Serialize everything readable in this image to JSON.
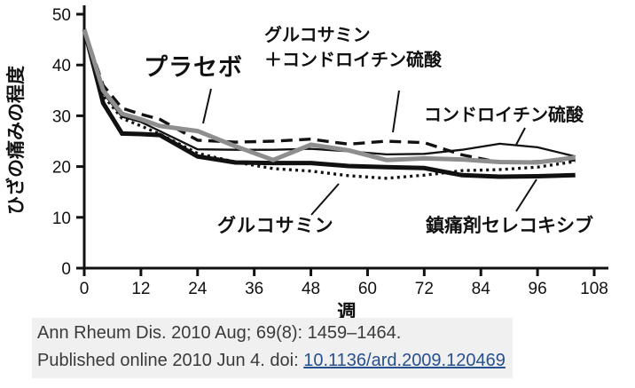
{
  "figure": {
    "citation_line1": "Ann Rheum Dis. 2010 Aug; 69(8): 1459–1464.",
    "citation_line2_prefix": "Published online 2010 Jun 4. doi: ",
    "citation_doi_link": "10.1136/ard.2009.120469"
  },
  "chart_data": {
    "type": "line",
    "title": "",
    "xlabel": "週",
    "ylabel": "ひざの痛みの程度",
    "xlim": [
      0,
      108
    ],
    "ylim": [
      0,
      50
    ],
    "x_ticks": [
      0,
      12,
      24,
      36,
      48,
      60,
      72,
      84,
      96,
      108
    ],
    "y_ticks": [
      0,
      10,
      20,
      30,
      40,
      50
    ],
    "grid": false,
    "legend": "inline-annotations",
    "x_weeks": [
      0,
      4,
      8,
      12,
      16,
      24,
      32,
      40,
      48,
      56,
      64,
      72,
      80,
      88,
      96,
      104
    ],
    "series": [
      {
        "name": "プラセボ",
        "annotation": "プラセボ",
        "style": "thick-gray",
        "color": "#8e8e8e",
        "values": [
          47,
          35,
          30.4,
          29.3,
          28,
          27,
          24,
          21.3,
          24.3,
          23.2,
          21.3,
          21.6,
          21.4,
          20.9,
          20.8,
          21.8
        ]
      },
      {
        "name": "グルコサミン＋コンドロイチン硫酸",
        "annotation": "グルコサミン\n＋コンドロイチン硫酸",
        "style": "dashed-black",
        "color": "#111111",
        "values": [
          47,
          36,
          31.5,
          30.3,
          29.3,
          25.2,
          24.8,
          25,
          25.4,
          24.4,
          25,
          24.7,
          22.3,
          20.8,
          21,
          21.3
        ]
      },
      {
        "name": "コンドロイチン硫酸",
        "annotation": "コンドロイチン硫酸",
        "style": "thin-black",
        "color": "#111111",
        "values": [
          47,
          34.5,
          29.8,
          28.8,
          27,
          23.4,
          23.3,
          23.3,
          23.5,
          23,
          22.4,
          22.5,
          23.3,
          24.5,
          23.8,
          22
        ]
      },
      {
        "name": "グルコサミン",
        "annotation": "グルコサミン",
        "style": "dotted-black",
        "color": "#111111",
        "values": [
          47,
          34,
          29.5,
          28,
          26.4,
          22.6,
          20.9,
          19.6,
          19.1,
          18.2,
          17.7,
          18.3,
          19.2,
          19.4,
          19.9,
          21
        ]
      },
      {
        "name": "鎮痛剤セレコキシブ",
        "annotation": "鎮痛剤セレコキシブ",
        "style": "thick-black",
        "color": "#111111",
        "values": [
          47,
          32.5,
          26.5,
          26.4,
          26.2,
          22,
          20.8,
          20.7,
          20.7,
          20.1,
          19.9,
          19.7,
          18.3,
          18,
          18.1,
          18.3
        ]
      }
    ]
  }
}
